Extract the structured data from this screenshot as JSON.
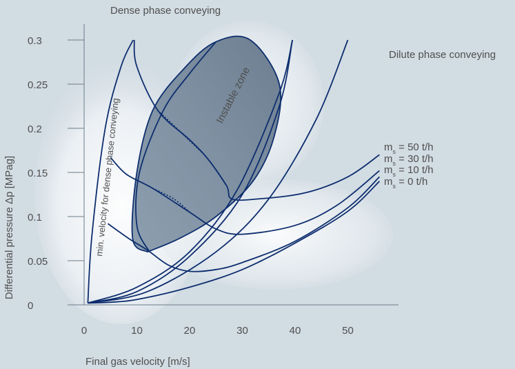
{
  "chart_data": {
    "type": "line",
    "title": "",
    "xlabel": "Final gas velocity [m/s]",
    "ylabel": "Differential pressure Δp [MPag]",
    "xlim": [
      0,
      57
    ],
    "ylim": [
      0,
      0.31
    ],
    "x_ticks": [
      "0",
      "10",
      "20",
      "30",
      "40",
      "50"
    ],
    "y_ticks": [
      "0",
      "0.05",
      "0.1",
      "0.15",
      "0.2",
      "0.25",
      "0.3"
    ],
    "grid": false,
    "annotations": {
      "dense": "Dense phase conveying",
      "dilute": "Dilute phase conveying",
      "instable": "Instable zone",
      "min_velocity": "min. velocity for dense phase conveying"
    },
    "series": [
      {
        "name": "m_s = 50 t/h",
        "label_main": "m",
        "label_sub": "s",
        "label_rest": " = 50 t/h",
        "points": [
          [
            9.5,
            0.3
          ],
          [
            10,
            0.27
          ],
          [
            14,
            0.22
          ],
          [
            20,
            0.187
          ],
          [
            23.5,
            0.165
          ],
          [
            27,
            0.135
          ],
          [
            28,
            0.12
          ],
          [
            33,
            0.12
          ],
          [
            42,
            0.127
          ],
          [
            50,
            0.145
          ],
          [
            56,
            0.17
          ]
        ]
      },
      {
        "name": "m_s = 30 t/h",
        "label_main": "m",
        "label_sub": "s",
        "label_rest": " = 30 t/h",
        "points": [
          [
            5,
            0.167
          ],
          [
            8,
            0.148
          ],
          [
            13,
            0.132
          ],
          [
            20,
            0.105
          ],
          [
            25,
            0.086
          ],
          [
            30,
            0.08
          ],
          [
            40,
            0.09
          ],
          [
            48,
            0.113
          ],
          [
            56,
            0.152
          ]
        ]
      },
      {
        "name": "m_s = 10 t/h",
        "label_main": "m",
        "label_sub": "s",
        "label_rest": " = 10 t/h",
        "points": [
          [
            4.5,
            0.092
          ],
          [
            8.5,
            0.075
          ],
          [
            12,
            0.062
          ],
          [
            16,
            0.045
          ],
          [
            20,
            0.038
          ],
          [
            25,
            0.04
          ],
          [
            30,
            0.048
          ],
          [
            40,
            0.072
          ],
          [
            50,
            0.11
          ],
          [
            56,
            0.145
          ]
        ]
      },
      {
        "name": "m_s = 0 t/h",
        "label_main": "m",
        "label_sub": "s",
        "label_rest": " =   0 t/h",
        "points": [
          [
            0.7,
            0.002
          ],
          [
            5,
            0.003
          ],
          [
            10,
            0.006
          ],
          [
            20,
            0.02
          ],
          [
            30,
            0.04
          ],
          [
            40,
            0.07
          ],
          [
            50,
            0.106
          ],
          [
            56,
            0.14
          ]
        ]
      }
    ]
  }
}
